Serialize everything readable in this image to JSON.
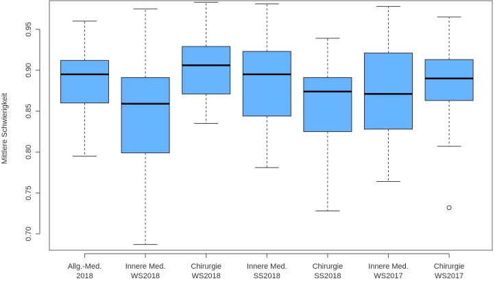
{
  "chart_data": {
    "type": "boxplot",
    "title": "",
    "xlabel": "",
    "ylabel": "Mittlere Schwierigkeit",
    "ylim": [
      0.68,
      0.985
    ],
    "yticks": [
      "0.70",
      "0.75",
      "0.80",
      "0.85",
      "0.90",
      "0.95"
    ],
    "grid": false,
    "box_color": "#66b3ff",
    "categories": [
      [
        "Allg.-Med.",
        "2018"
      ],
      [
        "Innere Med.",
        "WS2018"
      ],
      [
        "Chirurgie",
        "WS2018"
      ],
      [
        "Innere Med.",
        "SS2018"
      ],
      [
        "Chirurgie",
        "SS2018"
      ],
      [
        "Innere Med.",
        "WS2017"
      ],
      [
        "Chirurgie",
        "WS2017"
      ]
    ],
    "boxes": [
      {
        "min": 0.795,
        "q1": 0.86,
        "median": 0.895,
        "q3": 0.912,
        "max": 0.96,
        "outliers": []
      },
      {
        "min": 0.687,
        "q1": 0.799,
        "median": 0.859,
        "q3": 0.891,
        "max": 0.975,
        "outliers": []
      },
      {
        "min": 0.835,
        "q1": 0.871,
        "median": 0.906,
        "q3": 0.929,
        "max": 0.983,
        "outliers": []
      },
      {
        "min": 0.781,
        "q1": 0.844,
        "median": 0.895,
        "q3": 0.923,
        "max": 0.981,
        "outliers": []
      },
      {
        "min": 0.728,
        "q1": 0.825,
        "median": 0.874,
        "q3": 0.891,
        "max": 0.939,
        "outliers": []
      },
      {
        "min": 0.764,
        "q1": 0.828,
        "median": 0.871,
        "q3": 0.921,
        "max": 0.978,
        "outliers": []
      },
      {
        "min": 0.807,
        "q1": 0.863,
        "median": 0.89,
        "q3": 0.913,
        "max": 0.965,
        "outliers": [
          0.732
        ]
      }
    ]
  }
}
